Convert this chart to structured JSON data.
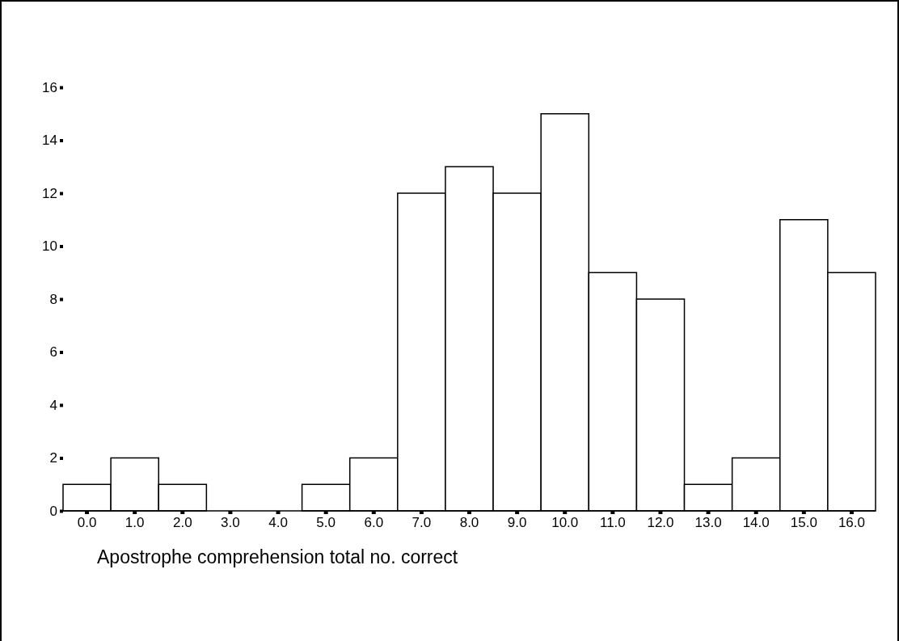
{
  "chart_data": {
    "type": "bar",
    "xlabel": "Apostrophe comprehension total no. correct",
    "categories": [
      "0.0",
      "1.0",
      "2.0",
      "3.0",
      "4.0",
      "5.0",
      "6.0",
      "7.0",
      "8.0",
      "9.0",
      "10.0",
      "11.0",
      "12.0",
      "13.0",
      "14.0",
      "15.0",
      "16.0"
    ],
    "values": [
      1,
      2,
      1,
      0,
      0,
      1,
      2,
      12,
      13,
      12,
      15,
      9,
      8,
      1,
      2,
      11,
      9
    ],
    "color": "#ffffff",
    "ylim": [
      0,
      16
    ],
    "yticks": [
      0,
      2,
      4,
      6,
      8,
      10,
      12,
      14,
      16
    ],
    "grid": false
  }
}
